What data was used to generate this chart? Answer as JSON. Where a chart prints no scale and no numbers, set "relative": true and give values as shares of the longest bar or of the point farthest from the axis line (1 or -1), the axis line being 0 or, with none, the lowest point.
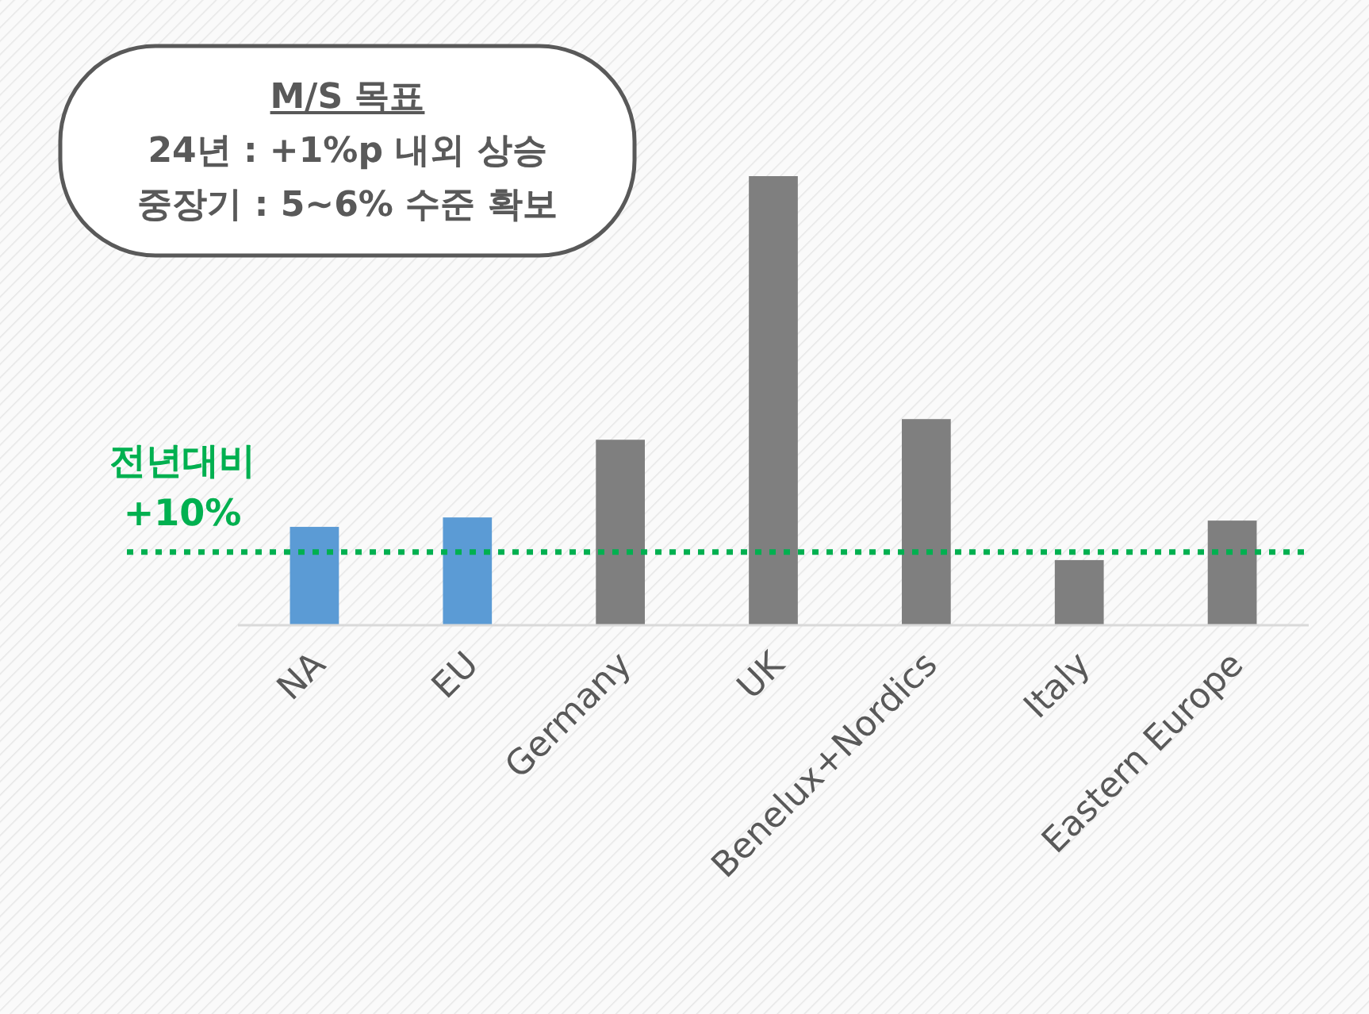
{
  "chart_data": {
    "type": "bar",
    "relative": true,
    "categories": [
      "NA",
      "EU",
      "Germany",
      "UK",
      "Benelux+Nordics",
      "Italy",
      "Eastern Europe"
    ],
    "values": [
      0.219,
      0.24,
      0.413,
      1,
      0.459,
      0.145,
      0.233
    ],
    "colors": [
      "#5b9bd5",
      "#5b9bd5",
      "#7f7f7f",
      "#7f7f7f",
      "#7f7f7f",
      "#7f7f7f",
      "#7f7f7f"
    ],
    "ref_lines": [
      {
        "axis": "y",
        "value": 0.163,
        "label": "전년대비\n+10%",
        "color": "#00b050",
        "line_style": "dotted"
      }
    ],
    "annotations": [
      "M/S 목표",
      "24년 : +1%p 내외 상승",
      "중장기 : 5~6% 수준 확보"
    ]
  }
}
